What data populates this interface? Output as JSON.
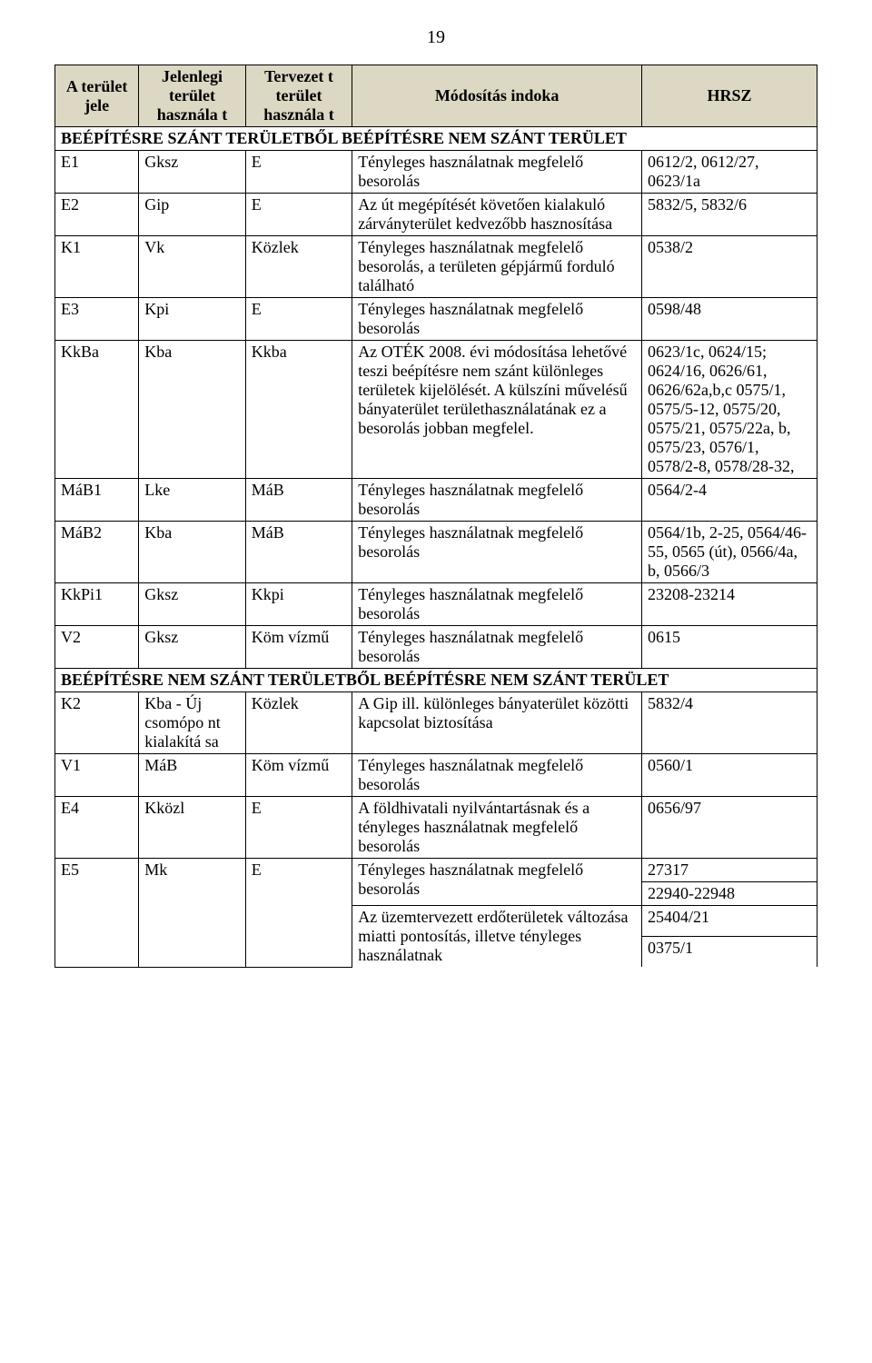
{
  "pageNumber": "19",
  "headers": {
    "col1": "A terület jele",
    "col2": "Jelenlegi terület használa t",
    "col3": "Tervezet t terület használa t",
    "col4": "Módosítás indoka",
    "col5": "HRSZ"
  },
  "section1": "BEÉPÍTÉSRE SZÁNT TERÜLETBŐL BEÉPÍTÉSRE NEM SZÁNT TERÜLET",
  "rows1": [
    {
      "c1": "E1",
      "c2": "Gksz",
      "c3": "E",
      "c4": "Tényleges használatnak megfelelő besorolás",
      "c5": "0612/2, 0612/27, 0623/1a"
    },
    {
      "c1": "E2",
      "c2": "Gip",
      "c3": "E",
      "c4": "Az út megépítését követően kialakuló zárványterület kedvezőbb hasznosítása",
      "c5": "5832/5, 5832/6"
    },
    {
      "c1": "K1",
      "c2": "Vk",
      "c3": "Közlek",
      "c4": "Tényleges használatnak megfelelő besorolás, a területen gépjármű forduló található",
      "c5": "0538/2"
    },
    {
      "c1": "E3",
      "c2": "Kpi",
      "c3": "E",
      "c4": "Tényleges használatnak megfelelő besorolás",
      "c5": "0598/48"
    },
    {
      "c1": "KkBa",
      "c2": "Kba",
      "c3": "Kkba",
      "c4": "Az OTÉK 2008. évi módosítása lehetővé teszi beépítésre nem szánt különleges területek kijelölését. A külszíni művelésű bányaterület területhasználatának ez a besorolás jobban megfelel.",
      "c5": "0623/1c, 0624/15; 0624/16, 0626/61, 0626/62a,b,c 0575/1, 0575/5-12, 0575/20, 0575/21, 0575/22a, b, 0575/23, 0576/1, 0578/2-8, 0578/28-32,"
    },
    {
      "c1": "MáB1",
      "c2": "Lke",
      "c3": "MáB",
      "c4": "Tényleges használatnak megfelelő besorolás",
      "c5": "0564/2-4"
    },
    {
      "c1": "MáB2",
      "c2": "Kba",
      "c3": "MáB",
      "c4": "Tényleges használatnak megfelelő besorolás",
      "c5": "0564/1b, 2-25, 0564/46-55, 0565 (út), 0566/4a, b, 0566/3"
    },
    {
      "c1": "KkPi1",
      "c2": "Gksz",
      "c3": "Kkpi",
      "c4": "Tényleges használatnak megfelelő besorolás",
      "c5": "23208-23214"
    },
    {
      "c1": "V2",
      "c2": "Gksz",
      "c3": "Köm vízmű",
      "c4": "Tényleges használatnak megfelelő besorolás",
      "c5": "0615"
    }
  ],
  "section2": "BEÉPÍTÉSRE NEM SZÁNT TERÜLETBŐL BEÉPÍTÉSRE NEM SZÁNT TERÜLET",
  "rows2": [
    {
      "c1": "K2",
      "c2": "Kba - Új csomópo nt kialakítá sa",
      "c3": "Közlek",
      "c4": "A Gip ill. különleges bányaterület közötti kapcsolat biztosítása",
      "c5": "5832/4"
    },
    {
      "c1": "V1",
      "c2": "MáB",
      "c3": "Köm vízmű",
      "c4": "Tényleges használatnak megfelelő besorolás",
      "c5": "0560/1"
    },
    {
      "c1": "E4",
      "c2": "Kközl",
      "c3": "E",
      "c4": "A földhivatali nyilvántartásnak és a tényleges használatnak megfelelő besorolás",
      "c5": "0656/97"
    }
  ],
  "e5": {
    "c1": "E5",
    "c2": "Mk",
    "c3": "E",
    "block1_c4": "Tényleges használatnak megfelelő besorolás",
    "block1_c5a": "27317",
    "block1_c5b": "22940-22948",
    "block2_c4": "Az üzemtervezett erdőterületek változása miatti pontosítás, illetve tényleges használatnak",
    "block2_c5a": "25404/21",
    "block2_c5b": "0375/1"
  }
}
